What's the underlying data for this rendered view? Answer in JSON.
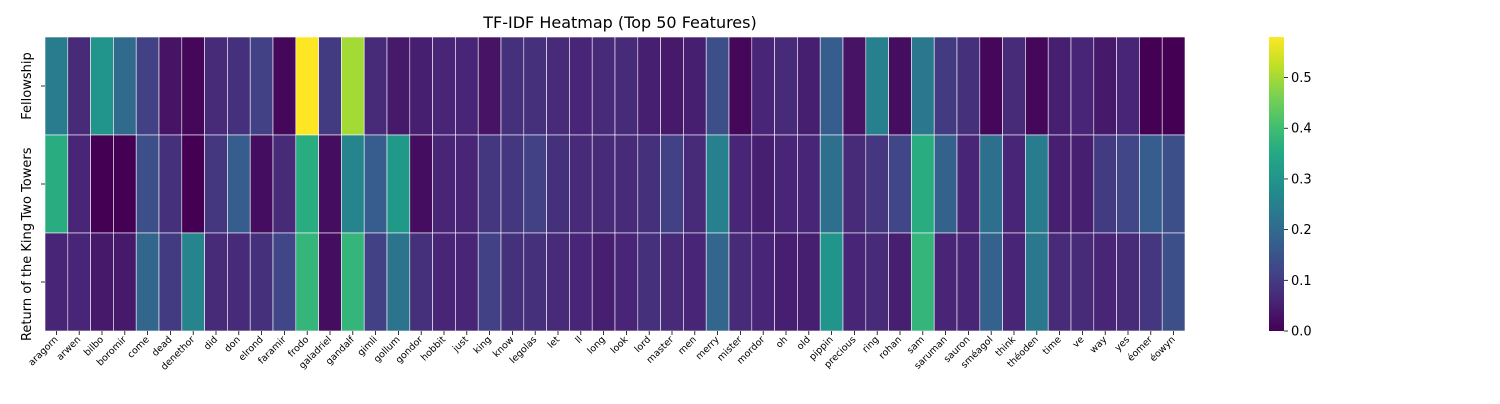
{
  "chart_data": {
    "type": "heatmap",
    "title": "TF-IDF Heatmap (Top 50 Features)",
    "xlabel": "",
    "ylabel": "",
    "colormap": "viridis",
    "colorbar_range": [
      0,
      0.58
    ],
    "colorbar_ticks": [
      "0.0",
      "0.1",
      "0.2",
      "0.3",
      "0.4",
      "0.5"
    ],
    "colorbar_tick_values": [
      0,
      0.1,
      0.2,
      0.3,
      0.4,
      0.5
    ],
    "rows": [
      "Fellowship",
      "Two Towers",
      "Return of the King"
    ],
    "columns": [
      "aragorn",
      "arwen",
      "bilbo",
      "boromir",
      "come",
      "dead",
      "denethor",
      "did",
      "don",
      "elrond",
      "faramir",
      "frodo",
      "galadriel",
      "gandalf",
      "gimli",
      "gollum",
      "gondor",
      "hobbit",
      "just",
      "king",
      "know",
      "legolas",
      "let",
      "ll",
      "long",
      "look",
      "lord",
      "master",
      "men",
      "merry",
      "mister",
      "mordor",
      "oh",
      "old",
      "pippin",
      "precious",
      "ring",
      "rohan",
      "sam",
      "saruman",
      "sauron",
      "sméagol",
      "think",
      "théoden",
      "time",
      "ve",
      "way",
      "yes",
      "éomer",
      "éowyn"
    ],
    "values": [
      [
        0.24,
        0.07,
        0.3,
        0.2,
        0.11,
        0.03,
        0.01,
        0.07,
        0.08,
        0.11,
        0.01,
        0.58,
        0.1,
        0.5,
        0.07,
        0.04,
        0.05,
        0.06,
        0.06,
        0.03,
        0.08,
        0.08,
        0.07,
        0.06,
        0.07,
        0.07,
        0.05,
        0.04,
        0.05,
        0.14,
        0.01,
        0.06,
        0.07,
        0.05,
        0.17,
        0.03,
        0.25,
        0.02,
        0.23,
        0.1,
        0.08,
        0.01,
        0.07,
        0.01,
        0.05,
        0.06,
        0.04,
        0.06,
        0.0,
        0.0
      ],
      [
        0.36,
        0.06,
        0.0,
        0.0,
        0.14,
        0.08,
        0.0,
        0.09,
        0.17,
        0.02,
        0.07,
        0.36,
        0.02,
        0.26,
        0.17,
        0.31,
        0.02,
        0.06,
        0.06,
        0.09,
        0.09,
        0.11,
        0.08,
        0.07,
        0.07,
        0.07,
        0.08,
        0.11,
        0.07,
        0.25,
        0.06,
        0.05,
        0.06,
        0.06,
        0.21,
        0.07,
        0.09,
        0.12,
        0.36,
        0.18,
        0.06,
        0.21,
        0.06,
        0.24,
        0.05,
        0.05,
        0.1,
        0.12,
        0.17,
        0.14
      ],
      [
        0.06,
        0.06,
        0.04,
        0.04,
        0.19,
        0.1,
        0.26,
        0.07,
        0.07,
        0.08,
        0.12,
        0.38,
        0.02,
        0.38,
        0.11,
        0.22,
        0.08,
        0.06,
        0.06,
        0.11,
        0.08,
        0.08,
        0.07,
        0.06,
        0.05,
        0.06,
        0.08,
        0.07,
        0.06,
        0.19,
        0.07,
        0.06,
        0.05,
        0.05,
        0.3,
        0.06,
        0.07,
        0.05,
        0.38,
        0.06,
        0.06,
        0.18,
        0.06,
        0.23,
        0.07,
        0.07,
        0.06,
        0.07,
        0.09,
        0.14
      ]
    ]
  }
}
